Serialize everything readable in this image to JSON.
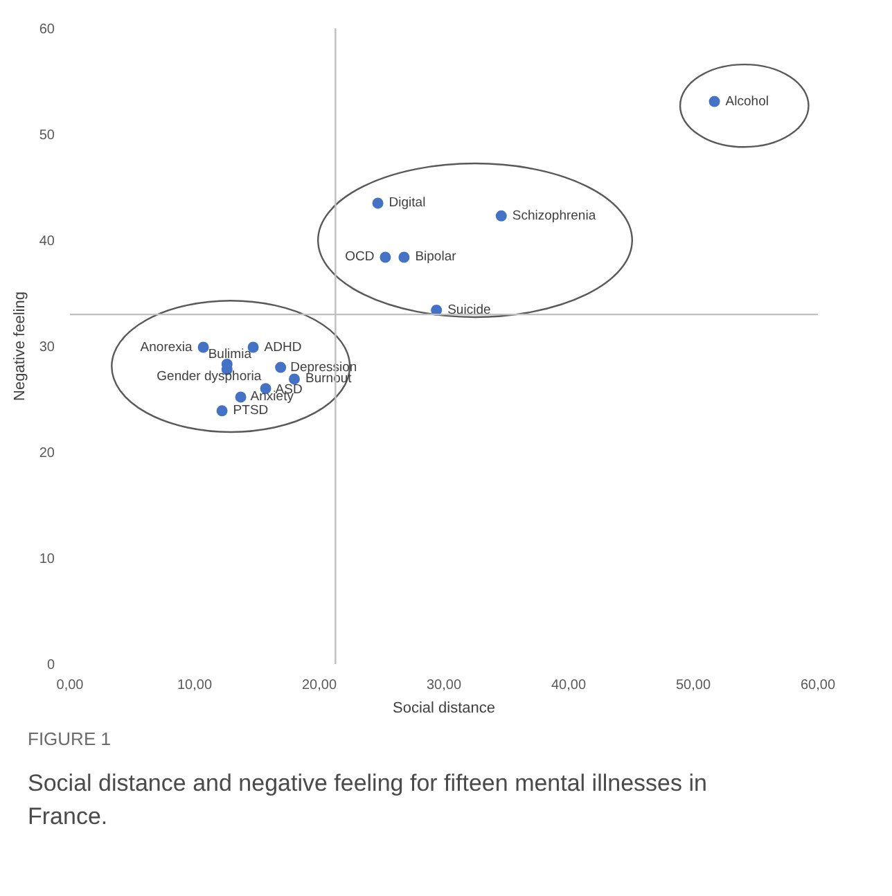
{
  "chart_data": {
    "type": "scatter",
    "xlabel": "Social distance",
    "ylabel": "Negative feeling",
    "x": [
      51.7,
      24.7,
      34.6,
      25.3,
      26.8,
      29.4,
      10.7,
      14.7,
      12.6,
      12.6,
      16.9,
      18.0,
      15.7,
      13.7,
      12.2
    ],
    "series": [
      {
        "color": "#4472c4",
        "values": [
          53.1,
          43.5,
          42.3,
          38.4,
          38.4,
          33.4,
          29.9,
          29.9,
          28.3,
          27.8,
          28.0,
          26.9,
          26.0,
          25.2,
          23.9
        ]
      }
    ],
    "annotations": [
      {
        "text": "Alcohol",
        "x": 51.7,
        "y": 53.1
      },
      {
        "text": "Digital",
        "x": 24.7,
        "y": 43.5
      },
      {
        "text": "Schizophrenia",
        "x": 34.6,
        "y": 42.3
      },
      {
        "text": "OCD",
        "x": 25.3,
        "y": 38.4
      },
      {
        "text": "Bipolar",
        "x": 26.8,
        "y": 38.4
      },
      {
        "text": "Suicide",
        "x": 29.4,
        "y": 33.4
      },
      {
        "text": "Anorexia",
        "x": 10.7,
        "y": 29.9
      },
      {
        "text": "ADHD",
        "x": 14.7,
        "y": 29.9
      },
      {
        "text": "Bulimia",
        "x": 12.6,
        "y": 28.3
      },
      {
        "text": "Gender dysphoria",
        "x": 12.6,
        "y": 27.8
      },
      {
        "text": "Depression",
        "x": 16.9,
        "y": 28.0
      },
      {
        "text": "Burnout",
        "x": 18.0,
        "y": 26.9
      },
      {
        "text": "ASD",
        "x": 15.7,
        "y": 26.0
      },
      {
        "text": "Anxiety",
        "x": 13.7,
        "y": 25.2
      },
      {
        "text": "PTSD",
        "x": 12.2,
        "y": 23.9
      },
      "FIGURE 1",
      "Social distance and negative feeling for fifteen mental illnesses in France."
    ],
    "ref_lines": [
      {
        "axis": "x",
        "value": 21.3,
        "color": "#bfbfbf"
      },
      {
        "axis": "y",
        "value": 33.0,
        "color": "#bfbfbf"
      }
    ],
    "xlim": [
      0,
      60
    ],
    "ylim": [
      0,
      60
    ],
    "xticks": [
      {
        "value": 0,
        "label": "0,00"
      },
      {
        "value": 10,
        "label": "10,00"
      },
      {
        "value": 20,
        "label": "20,00"
      },
      {
        "value": 30,
        "label": "30,00"
      },
      {
        "value": 40,
        "label": "40,00"
      },
      {
        "value": 50,
        "label": "50,00"
      },
      {
        "value": 60,
        "label": "60,00"
      }
    ],
    "yticks": [
      0,
      10,
      20,
      30,
      40,
      50,
      60
    ],
    "grid": false,
    "marker": "circle"
  }
}
